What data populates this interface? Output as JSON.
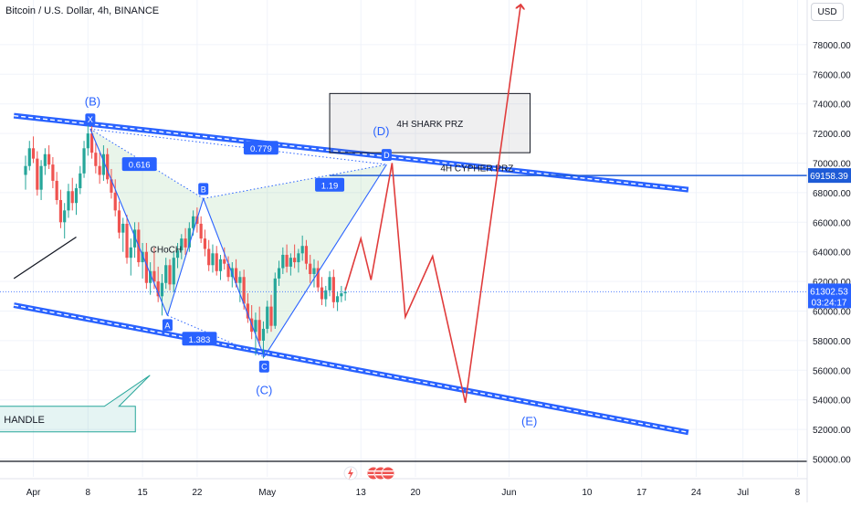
{
  "header": {
    "symbol_title": "Bitcoin / U.S. Dollar, 4h, BINANCE",
    "currency_button": "USD"
  },
  "chart_data": {
    "type": "candlestick",
    "symbol": "Bitcoin / U.S. Dollar",
    "interval": "4h",
    "exchange": "BINANCE",
    "ylim": [
      49000,
      82000
    ],
    "y_ticks": [
      50000,
      52000,
      54000,
      56000,
      58000,
      60000,
      62000,
      64000,
      66000,
      68000,
      70000,
      72000,
      74000,
      76000,
      78000
    ],
    "y_tick_labels": [
      "50000.00",
      "52000.00",
      "54000.00",
      "56000.00",
      "58000.00",
      "60000.00",
      "62000.00",
      "64000.00",
      "66000.00",
      "68000.00",
      "70000.00",
      "72000.00",
      "74000.00",
      "76000.00",
      "78000.00"
    ],
    "x_tick_labels": [
      "Apr",
      "8",
      "15",
      "22",
      "May",
      "13",
      "20",
      "Jun",
      "10",
      "17",
      "24",
      "Jul",
      "8"
    ],
    "x_tick_days": [
      1,
      8,
      15,
      22,
      31,
      43,
      50,
      62,
      72,
      79,
      86,
      92,
      99
    ],
    "x_axis_start": "2024-03-28",
    "price_lines": [
      {
        "value": 69158.39,
        "label": "69158.39",
        "color": "#1e5bd6"
      },
      {
        "value": 61302.53,
        "label": "61302.53",
        "sublabel": "03:24:17",
        "color": "#2962ff"
      }
    ],
    "candles": [
      [
        0.0,
        69200,
        70500,
        68200,
        69800
      ],
      [
        0.5,
        69800,
        71500,
        69500,
        71000
      ],
      [
        1.0,
        71000,
        71800,
        70000,
        70300
      ],
      [
        1.5,
        70300,
        70800,
        67800,
        68200
      ],
      [
        2.0,
        68200,
        70200,
        67500,
        69800
      ],
      [
        2.5,
        69800,
        71000,
        69200,
        70600
      ],
      [
        3.0,
        70600,
        71200,
        69600,
        69900
      ],
      [
        3.5,
        69900,
        70400,
        68300,
        68800
      ],
      [
        4.0,
        68800,
        69400,
        67200,
        67500
      ],
      [
        4.5,
        67500,
        68200,
        65600,
        66000
      ],
      [
        5.0,
        66000,
        67300,
        64900,
        66800
      ],
      [
        5.5,
        66800,
        68600,
        66300,
        68100
      ],
      [
        6.0,
        68100,
        69000,
        66800,
        67300
      ],
      [
        6.5,
        67300,
        68600,
        66500,
        68300
      ],
      [
        7.0,
        68300,
        69800,
        67900,
        69300
      ],
      [
        7.5,
        69300,
        71500,
        69000,
        71000
      ],
      [
        8.0,
        71000,
        72700,
        70500,
        72000
      ],
      [
        8.5,
        72000,
        72500,
        70300,
        70700
      ],
      [
        9.0,
        70700,
        71400,
        69300,
        69800
      ],
      [
        9.5,
        69800,
        70700,
        68600,
        69200
      ],
      [
        10.0,
        69200,
        71200,
        68800,
        70600
      ],
      [
        10.5,
        70600,
        71000,
        68600,
        68900
      ],
      [
        11.0,
        68900,
        69600,
        67600,
        68000
      ],
      [
        11.5,
        68000,
        68900,
        66400,
        66800
      ],
      [
        12.0,
        66800,
        67400,
        64900,
        65300
      ],
      [
        12.5,
        65300,
        66300,
        64000,
        65900
      ],
      [
        13.0,
        65900,
        66500,
        63200,
        63600
      ],
      [
        13.5,
        63600,
        64900,
        62400,
        64300
      ],
      [
        14.0,
        64300,
        66000,
        63600,
        65500
      ],
      [
        14.5,
        65500,
        66000,
        63000,
        63300
      ],
      [
        15.0,
        63300,
        64600,
        62200,
        64000
      ],
      [
        15.5,
        64000,
        64600,
        61500,
        61900
      ],
      [
        16.0,
        61900,
        63300,
        61100,
        62700
      ],
      [
        16.5,
        62700,
        64300,
        61500,
        62000
      ],
      [
        17.0,
        62000,
        63000,
        60600,
        61000
      ],
      [
        17.5,
        61000,
        62500,
        59700,
        61900
      ],
      [
        18.0,
        61900,
        63600,
        61500,
        63100
      ],
      [
        18.5,
        63100,
        63500,
        61400,
        61800
      ],
      [
        19.0,
        61800,
        64000,
        61300,
        63600
      ],
      [
        19.5,
        63600,
        64600,
        62900,
        64100
      ],
      [
        20.0,
        64100,
        65200,
        63500,
        64900
      ],
      [
        20.5,
        64900,
        65600,
        63800,
        64300
      ],
      [
        21.0,
        64300,
        66000,
        64000,
        65600
      ],
      [
        21.5,
        65600,
        66800,
        65100,
        66400
      ],
      [
        22.0,
        66400,
        67000,
        65300,
        65900
      ],
      [
        22.5,
        65900,
        66400,
        64600,
        64900
      ],
      [
        23.0,
        64900,
        65500,
        63700,
        64200
      ],
      [
        23.5,
        64200,
        64800,
        62700,
        63100
      ],
      [
        24.0,
        63100,
        64500,
        62600,
        63900
      ],
      [
        24.5,
        63900,
        64400,
        62400,
        62700
      ],
      [
        25.0,
        62700,
        63800,
        62100,
        63500
      ],
      [
        25.5,
        63500,
        64300,
        62800,
        63200
      ],
      [
        26.0,
        63200,
        63700,
        62000,
        62300
      ],
      [
        26.5,
        62300,
        63300,
        61600,
        62900
      ],
      [
        27.0,
        62900,
        63500,
        61600,
        61900
      ],
      [
        27.5,
        61900,
        62700,
        60600,
        62300
      ],
      [
        28.0,
        62300,
        62800,
        60100,
        60500
      ],
      [
        28.5,
        60500,
        61200,
        59200,
        59500
      ],
      [
        29.0,
        59500,
        60400,
        58100,
        58600
      ],
      [
        29.5,
        58600,
        59900,
        57000,
        59400
      ],
      [
        30.0,
        59400,
        60300,
        57600,
        58000
      ],
      [
        30.5,
        58000,
        59300,
        56800,
        58800
      ],
      [
        31.0,
        58800,
        60700,
        58500,
        60300
      ],
      [
        31.5,
        60300,
        61100,
        58600,
        59000
      ],
      [
        32.0,
        59000,
        62600,
        58800,
        62200
      ],
      [
        32.5,
        62200,
        63400,
        61700,
        62900
      ],
      [
        33.0,
        62900,
        64300,
        62500,
        63800
      ],
      [
        33.5,
        63800,
        64500,
        62600,
        63000
      ],
      [
        34.0,
        63000,
        63900,
        62400,
        63600
      ],
      [
        34.5,
        63600,
        64500,
        62900,
        63300
      ],
      [
        35.0,
        63300,
        64200,
        62600,
        63900
      ],
      [
        35.5,
        63900,
        65100,
        63400,
        64400
      ],
      [
        36.0,
        64400,
        64800,
        62800,
        63200
      ],
      [
        36.5,
        63200,
        63800,
        61900,
        62500
      ],
      [
        37.0,
        62500,
        63500,
        61600,
        62900
      ],
      [
        37.5,
        62900,
        63400,
        61300,
        61600
      ],
      [
        38.0,
        61600,
        62300,
        60400,
        60800
      ],
      [
        38.5,
        60800,
        61700,
        60300,
        61400
      ],
      [
        39.0,
        61400,
        62700,
        61000,
        62300
      ],
      [
        39.5,
        62300,
        62800,
        60200,
        60600
      ],
      [
        40.0,
        60600,
        61300,
        60000,
        61000
      ],
      [
        40.5,
        61000,
        61700,
        60600,
        61200
      ],
      [
        41.0,
        61200,
        61600,
        60700,
        61300
      ]
    ],
    "trendlines": [
      {
        "name": "descending-channel-upper",
        "color": "#2962ff",
        "points": [
          [
            -1.5,
            73200
          ],
          [
            85.0,
            68200
          ]
        ]
      },
      {
        "name": "descending-channel-lower",
        "color": "#2962ff",
        "points": [
          [
            -1.5,
            60400
          ],
          [
            85.0,
            51800
          ]
        ]
      },
      {
        "name": "handle-trend-line",
        "color": "#131722",
        "points": [
          [
            -1.5,
            62200
          ],
          [
            6.5,
            65000
          ]
        ]
      }
    ],
    "harmonic_pattern": {
      "points": [
        {
          "label": "X",
          "x": 8.3,
          "y": 72300
        },
        {
          "label": "A",
          "x": 18.2,
          "y": 59700
        },
        {
          "label": "B",
          "x": 22.8,
          "y": 67600
        },
        {
          "label": "C",
          "x": 30.6,
          "y": 56900
        },
        {
          "label": "D",
          "x": 46.3,
          "y": 69900
        }
      ],
      "ratios": [
        {
          "value": "0.616",
          "x": 14.6,
          "y": 69900
        },
        {
          "value": "1.19",
          "x": 39.0,
          "y": 68500
        },
        {
          "value": "1.383",
          "x": 22.3,
          "y": 58100
        },
        {
          "value": "0.779",
          "x": 30.2,
          "y": 71000
        }
      ],
      "wave_labels": [
        {
          "text": "(B)",
          "x": 8.6,
          "y": 74200
        },
        {
          "text": "(D)",
          "x": 45.6,
          "y": 72200
        },
        {
          "text": "(C)",
          "x": 30.6,
          "y": 54700
        },
        {
          "text": "(E)",
          "x": 64.6,
          "y": 52600
        }
      ]
    },
    "projection_path": {
      "color": "#e03c3c",
      "points": [
        [
          41.0,
          61400
        ],
        [
          43.0,
          64900
        ],
        [
          44.3,
          62100
        ],
        [
          47.0,
          70000
        ],
        [
          48.7,
          59600
        ],
        [
          52.2,
          63700
        ],
        [
          56.4,
          53800
        ],
        [
          63.5,
          80700
        ]
      ]
    },
    "zones": [
      {
        "label": "4H SHARK PRZ",
        "x_range": [
          39.0,
          64.7
        ],
        "y_range": [
          70700,
          74700
        ]
      },
      {
        "label": "4H CYPHER PRZ",
        "x": 53.2,
        "y": 69700
      }
    ],
    "annotations": [
      {
        "text": "CHoCH",
        "x": 16.0,
        "y": 64200
      },
      {
        "text": "HANDLE",
        "x": 0.5,
        "y": 52700
      }
    ]
  }
}
